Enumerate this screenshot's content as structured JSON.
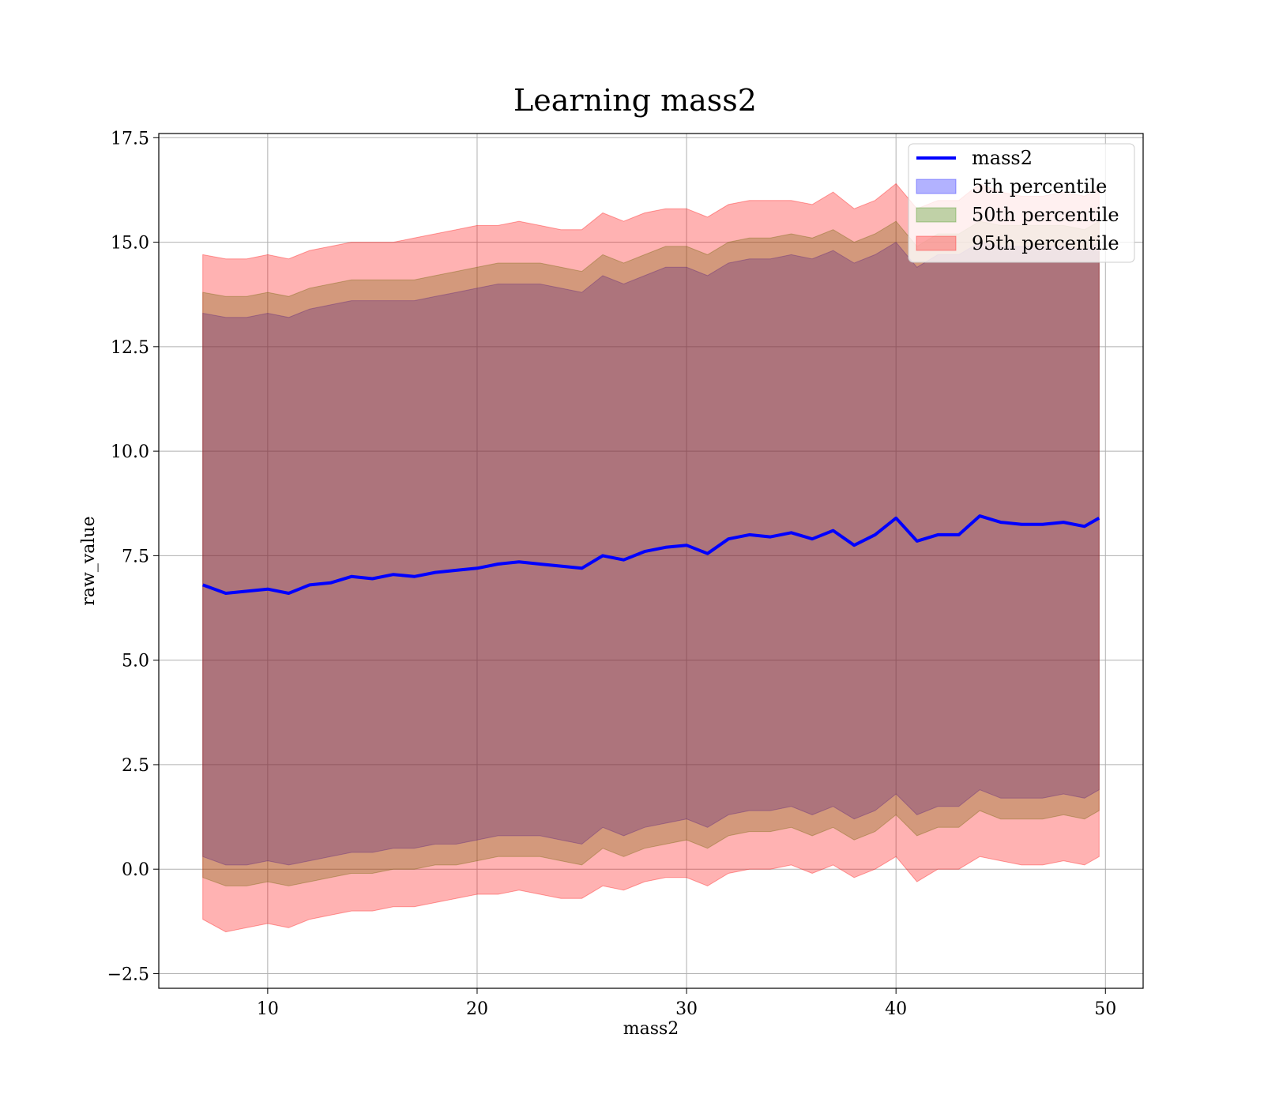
{
  "chart_data": {
    "type": "area",
    "title": "Learning mass2",
    "xlabel": "mass2",
    "ylabel": "raw_value",
    "xlim": [
      4.8,
      51.8
    ],
    "ylim": [
      -2.85,
      17.6
    ],
    "x_range": [
      6.9,
      49.7
    ],
    "grid": true,
    "legend_position": "top-right",
    "x_ticks": [
      {
        "value": 10,
        "label": "10"
      },
      {
        "value": 20,
        "label": "20"
      },
      {
        "value": 30,
        "label": "30"
      },
      {
        "value": 40,
        "label": "40"
      },
      {
        "value": 50,
        "label": "50"
      }
    ],
    "y_ticks": [
      {
        "value": -2.5,
        "label": "−2.5"
      },
      {
        "value": 0.0,
        "label": "0.0"
      },
      {
        "value": 2.5,
        "label": "2.5"
      },
      {
        "value": 5.0,
        "label": "5.0"
      },
      {
        "value": 7.5,
        "label": "7.5"
      },
      {
        "value": 10.0,
        "label": "10.0"
      },
      {
        "value": 12.5,
        "label": "12.5"
      },
      {
        "value": 15.0,
        "label": "15.0"
      },
      {
        "value": 17.5,
        "label": "17.5"
      }
    ],
    "legend": [
      {
        "label": "mass2",
        "kind": "line",
        "color": "#0000ff"
      },
      {
        "label": "5th percentile",
        "kind": "patch",
        "color": "#0000ff"
      },
      {
        "label": "50th percentile",
        "kind": "patch",
        "color": "#2e8b00"
      },
      {
        "label": "95th percentile",
        "kind": "patch",
        "color": "#ff0000"
      }
    ],
    "series": [
      {
        "name": "mass2",
        "kind": "line",
        "color": "#0000ff",
        "x": [
          6.9,
          8,
          9,
          10,
          11,
          12,
          13,
          14,
          15,
          16,
          17,
          18,
          19,
          20,
          21,
          22,
          23,
          24,
          25,
          26,
          27,
          28,
          29,
          30,
          31,
          32,
          33,
          34,
          35,
          36,
          37,
          38,
          39,
          40,
          41,
          42,
          43,
          44,
          45,
          46,
          47,
          48,
          49,
          49.7
        ],
        "y": [
          6.8,
          6.6,
          6.65,
          6.7,
          6.6,
          6.8,
          6.85,
          7.0,
          6.95,
          7.05,
          7.0,
          7.1,
          7.15,
          7.2,
          7.3,
          7.35,
          7.3,
          7.25,
          7.2,
          7.5,
          7.4,
          7.6,
          7.7,
          7.75,
          7.55,
          7.9,
          8.0,
          7.95,
          8.05,
          7.9,
          8.1,
          7.75,
          8.0,
          8.4,
          7.85,
          8.0,
          8.0,
          8.45,
          8.3,
          8.25,
          8.25,
          8.3,
          8.2,
          8.4
        ]
      },
      {
        "name": "5th percentile",
        "kind": "band",
        "color": "#0000ff",
        "x": [
          6.9,
          8,
          9,
          10,
          11,
          12,
          13,
          14,
          15,
          16,
          17,
          18,
          19,
          20,
          21,
          22,
          23,
          24,
          25,
          26,
          27,
          28,
          29,
          30,
          31,
          32,
          33,
          34,
          35,
          36,
          37,
          38,
          39,
          40,
          41,
          42,
          43,
          44,
          45,
          46,
          47,
          48,
          49,
          49.7
        ],
        "upper": [
          13.3,
          13.2,
          13.2,
          13.3,
          13.2,
          13.4,
          13.5,
          13.6,
          13.6,
          13.6,
          13.6,
          13.7,
          13.8,
          13.9,
          14.0,
          14.0,
          14.0,
          13.9,
          13.8,
          14.2,
          14.0,
          14.2,
          14.4,
          14.4,
          14.2,
          14.5,
          14.6,
          14.6,
          14.7,
          14.6,
          14.8,
          14.5,
          14.7,
          15.0,
          14.4,
          14.7,
          14.7,
          15.0,
          14.9,
          14.9,
          14.9,
          14.9,
          14.8,
          15.0
        ],
        "lower": [
          0.3,
          0.1,
          0.1,
          0.2,
          0.1,
          0.2,
          0.3,
          0.4,
          0.4,
          0.5,
          0.5,
          0.6,
          0.6,
          0.7,
          0.8,
          0.8,
          0.8,
          0.7,
          0.6,
          1.0,
          0.8,
          1.0,
          1.1,
          1.2,
          1.0,
          1.3,
          1.4,
          1.4,
          1.5,
          1.3,
          1.5,
          1.2,
          1.4,
          1.8,
          1.3,
          1.5,
          1.5,
          1.9,
          1.7,
          1.7,
          1.7,
          1.8,
          1.7,
          1.9
        ]
      },
      {
        "name": "50th percentile",
        "kind": "band",
        "color": "#2e8b00",
        "x": [
          6.9,
          8,
          9,
          10,
          11,
          12,
          13,
          14,
          15,
          16,
          17,
          18,
          19,
          20,
          21,
          22,
          23,
          24,
          25,
          26,
          27,
          28,
          29,
          30,
          31,
          32,
          33,
          34,
          35,
          36,
          37,
          38,
          39,
          40,
          41,
          42,
          43,
          44,
          45,
          46,
          47,
          48,
          49,
          49.7
        ],
        "upper": [
          13.8,
          13.7,
          13.7,
          13.8,
          13.7,
          13.9,
          14.0,
          14.1,
          14.1,
          14.1,
          14.1,
          14.2,
          14.3,
          14.4,
          14.5,
          14.5,
          14.5,
          14.4,
          14.3,
          14.7,
          14.5,
          14.7,
          14.9,
          14.9,
          14.7,
          15.0,
          15.1,
          15.1,
          15.2,
          15.1,
          15.3,
          15.0,
          15.2,
          15.5,
          14.9,
          15.2,
          15.2,
          15.5,
          15.4,
          15.4,
          15.4,
          15.4,
          15.3,
          15.5
        ],
        "lower": [
          -0.2,
          -0.4,
          -0.4,
          -0.3,
          -0.4,
          -0.3,
          -0.2,
          -0.1,
          -0.1,
          0.0,
          0.0,
          0.1,
          0.1,
          0.2,
          0.3,
          0.3,
          0.3,
          0.2,
          0.1,
          0.5,
          0.3,
          0.5,
          0.6,
          0.7,
          0.5,
          0.8,
          0.9,
          0.9,
          1.0,
          0.8,
          1.0,
          0.7,
          0.9,
          1.3,
          0.8,
          1.0,
          1.0,
          1.4,
          1.2,
          1.2,
          1.2,
          1.3,
          1.2,
          1.4
        ]
      },
      {
        "name": "95th percentile",
        "kind": "band",
        "color": "#ff0000",
        "x": [
          6.9,
          8,
          9,
          10,
          11,
          12,
          13,
          14,
          15,
          16,
          17,
          18,
          19,
          20,
          21,
          22,
          23,
          24,
          25,
          26,
          27,
          28,
          29,
          30,
          31,
          32,
          33,
          34,
          35,
          36,
          37,
          38,
          39,
          40,
          41,
          42,
          43,
          44,
          45,
          46,
          47,
          48,
          49,
          49.7
        ],
        "upper": [
          14.7,
          14.6,
          14.6,
          14.7,
          14.6,
          14.8,
          14.9,
          15.0,
          15.0,
          15.0,
          15.1,
          15.2,
          15.3,
          15.4,
          15.4,
          15.5,
          15.4,
          15.3,
          15.3,
          15.7,
          15.5,
          15.7,
          15.8,
          15.8,
          15.6,
          15.9,
          16.0,
          16.0,
          16.0,
          15.9,
          16.2,
          15.8,
          16.0,
          16.4,
          15.8,
          16.0,
          16.0,
          16.4,
          16.2,
          16.1,
          16.1,
          16.2,
          16.1,
          16.3
        ],
        "lower": [
          -1.2,
          -1.5,
          -1.4,
          -1.3,
          -1.4,
          -1.2,
          -1.1,
          -1.0,
          -1.0,
          -0.9,
          -0.9,
          -0.8,
          -0.7,
          -0.6,
          -0.6,
          -0.5,
          -0.6,
          -0.7,
          -0.7,
          -0.4,
          -0.5,
          -0.3,
          -0.2,
          -0.2,
          -0.4,
          -0.1,
          0.0,
          0.0,
          0.1,
          -0.1,
          0.1,
          -0.2,
          0.0,
          0.3,
          -0.3,
          0.0,
          0.0,
          0.3,
          0.2,
          0.1,
          0.1,
          0.2,
          0.1,
          0.3
        ]
      }
    ]
  }
}
